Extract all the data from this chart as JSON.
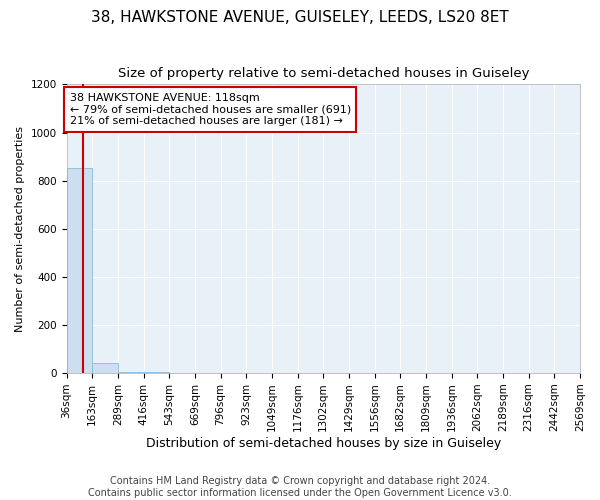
{
  "title": "38, HAWKSTONE AVENUE, GUISELEY, LEEDS, LS20 8ET",
  "subtitle": "Size of property relative to semi-detached houses in Guiseley",
  "xlabel": "Distribution of semi-detached houses by size in Guiseley",
  "ylabel": "Number of semi-detached properties",
  "bin_edges": [
    36,
    163,
    289,
    416,
    543,
    669,
    796,
    923,
    1049,
    1176,
    1302,
    1429,
    1556,
    1682,
    1809,
    1936,
    2062,
    2189,
    2316,
    2442,
    2569
  ],
  "bin_counts": [
    851,
    40,
    5,
    2,
    1,
    0,
    0,
    0,
    0,
    0,
    0,
    0,
    0,
    0,
    0,
    0,
    0,
    0,
    0,
    0
  ],
  "property_size": 118,
  "bar_color": "#ccdff0",
  "bar_edge_color": "#88bbdd",
  "red_line_color": "#cc0000",
  "annotation_line1": "38 HAWKSTONE AVENUE: 118sqm",
  "annotation_line2": "← 79% of semi-detached houses are smaller (691)",
  "annotation_line3": "21% of semi-detached houses are larger (181) →",
  "annotation_box_facecolor": "white",
  "annotation_box_edgecolor": "#cc0000",
  "plot_bg_color": "#e8f0f8",
  "ylim": [
    0,
    1200
  ],
  "yticks": [
    0,
    200,
    400,
    600,
    800,
    1000,
    1200
  ],
  "footer_text": "Contains HM Land Registry data © Crown copyright and database right 2024.\nContains public sector information licensed under the Open Government Licence v3.0.",
  "title_fontsize": 11,
  "subtitle_fontsize": 9.5,
  "xlabel_fontsize": 9,
  "ylabel_fontsize": 8,
  "tick_fontsize": 7.5,
  "annotation_fontsize": 8,
  "footer_fontsize": 7
}
